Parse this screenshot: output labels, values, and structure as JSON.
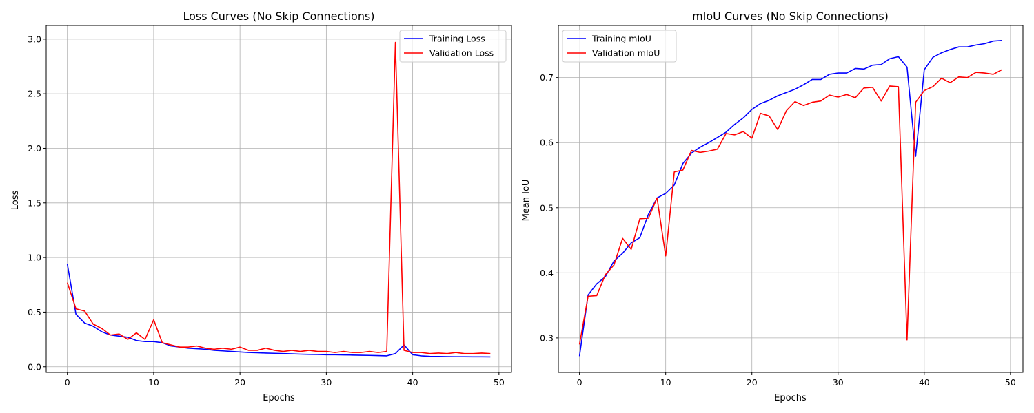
{
  "chart_data": [
    {
      "type": "line",
      "title": "Loss Curves (No Skip Connections)",
      "xlabel": "Epochs",
      "ylabel": "Loss",
      "xlim": [
        -2.45,
        51.45
      ],
      "ylim": [
        -0.052,
        3.125
      ],
      "xticks": [
        0,
        10,
        20,
        30,
        40,
        50
      ],
      "yticks": [
        0.0,
        0.5,
        1.0,
        1.5,
        2.0,
        2.5,
        3.0
      ],
      "ytick_labels": [
        "0.0",
        "0.5",
        "1.0",
        "1.5",
        "2.0",
        "2.5",
        "3.0"
      ],
      "grid": true,
      "legend_position": "top-right",
      "x": [
        0,
        1,
        2,
        3,
        4,
        5,
        6,
        7,
        8,
        9,
        10,
        11,
        12,
        13,
        14,
        15,
        16,
        17,
        18,
        19,
        20,
        21,
        22,
        23,
        24,
        25,
        26,
        27,
        28,
        29,
        30,
        31,
        32,
        33,
        34,
        35,
        36,
        37,
        38,
        39,
        40,
        41,
        42,
        43,
        44,
        45,
        46,
        47,
        48,
        49
      ],
      "series": [
        {
          "name": "Training Loss",
          "color": "#0000ff",
          "values": [
            0.94,
            0.48,
            0.4,
            0.37,
            0.32,
            0.29,
            0.28,
            0.27,
            0.24,
            0.23,
            0.23,
            0.22,
            0.19,
            0.18,
            0.17,
            0.165,
            0.16,
            0.15,
            0.145,
            0.14,
            0.135,
            0.13,
            0.128,
            0.125,
            0.123,
            0.12,
            0.118,
            0.115,
            0.113,
            0.112,
            0.11,
            0.11,
            0.108,
            0.107,
            0.105,
            0.104,
            0.102,
            0.1,
            0.12,
            0.2,
            0.11,
            0.1,
            0.095,
            0.094,
            0.093,
            0.092,
            0.092,
            0.091,
            0.091,
            0.09
          ]
        },
        {
          "name": "Validation Loss",
          "color": "#ff0000",
          "values": [
            0.77,
            0.53,
            0.51,
            0.39,
            0.35,
            0.29,
            0.3,
            0.25,
            0.31,
            0.25,
            0.43,
            0.22,
            0.2,
            0.18,
            0.18,
            0.19,
            0.17,
            0.16,
            0.17,
            0.16,
            0.18,
            0.15,
            0.15,
            0.17,
            0.15,
            0.14,
            0.15,
            0.14,
            0.15,
            0.14,
            0.14,
            0.13,
            0.14,
            0.13,
            0.13,
            0.14,
            0.13,
            0.14,
            2.97,
            0.15,
            0.13,
            0.13,
            0.12,
            0.125,
            0.12,
            0.13,
            0.12,
            0.12,
            0.125,
            0.12
          ]
        }
      ]
    },
    {
      "type": "line",
      "title": "mIoU Curves (No Skip Connections)",
      "xlabel": "Epochs",
      "ylabel": "Mean IoU",
      "xlim": [
        -2.45,
        51.45
      ],
      "ylim": [
        0.247,
        0.78
      ],
      "xticks": [
        0,
        10,
        20,
        30,
        40,
        50
      ],
      "yticks": [
        0.3,
        0.4,
        0.5,
        0.6,
        0.7
      ],
      "ytick_labels": [
        "0.3",
        "0.4",
        "0.5",
        "0.6",
        "0.7"
      ],
      "grid": true,
      "legend_position": "top-left",
      "x": [
        0,
        1,
        2,
        3,
        4,
        5,
        6,
        7,
        8,
        9,
        10,
        11,
        12,
        13,
        14,
        15,
        16,
        17,
        18,
        19,
        20,
        21,
        22,
        23,
        24,
        25,
        26,
        27,
        28,
        29,
        30,
        31,
        32,
        33,
        34,
        35,
        36,
        37,
        38,
        39,
        40,
        41,
        42,
        43,
        44,
        45,
        46,
        47,
        48,
        49
      ],
      "series": [
        {
          "name": "Training mIoU",
          "color": "#0000ff",
          "values": [
            0.272,
            0.366,
            0.383,
            0.394,
            0.418,
            0.43,
            0.446,
            0.454,
            0.49,
            0.515,
            0.522,
            0.535,
            0.568,
            0.584,
            0.593,
            0.6,
            0.608,
            0.616,
            0.628,
            0.638,
            0.651,
            0.66,
            0.665,
            0.672,
            0.677,
            0.682,
            0.689,
            0.697,
            0.697,
            0.705,
            0.707,
            0.707,
            0.714,
            0.713,
            0.719,
            0.72,
            0.729,
            0.732,
            0.716,
            0.579,
            0.712,
            0.731,
            0.738,
            0.743,
            0.747,
            0.747,
            0.75,
            0.752,
            0.756,
            0.757
          ]
        },
        {
          "name": "Validation mIoU",
          "color": "#ff0000",
          "values": [
            0.29,
            0.364,
            0.365,
            0.397,
            0.412,
            0.453,
            0.436,
            0.483,
            0.484,
            0.515,
            0.426,
            0.555,
            0.558,
            0.588,
            0.585,
            0.587,
            0.59,
            0.614,
            0.612,
            0.617,
            0.607,
            0.645,
            0.641,
            0.62,
            0.649,
            0.663,
            0.657,
            0.662,
            0.664,
            0.673,
            0.67,
            0.674,
            0.669,
            0.684,
            0.685,
            0.664,
            0.687,
            0.686,
            0.297,
            0.662,
            0.68,
            0.686,
            0.699,
            0.692,
            0.701,
            0.7,
            0.708,
            0.707,
            0.705,
            0.712
          ]
        }
      ]
    }
  ]
}
